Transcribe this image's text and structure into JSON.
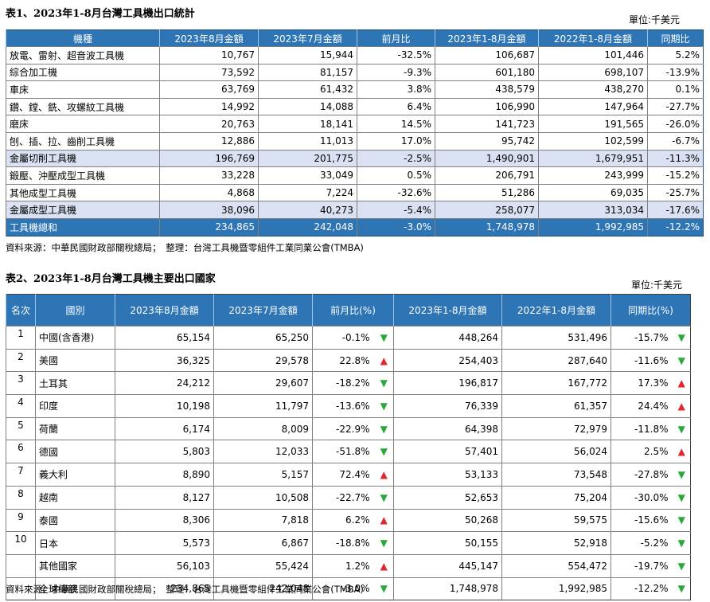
{
  "table1": {
    "title": "表1、2023年1-8月台灣工具機出口統計",
    "unit": "單位:千美元",
    "headers": [
      "機種",
      "2023年8月金額",
      "2023年7月金額",
      "前月比",
      "2023年1-8月金額",
      "2022年1-8月金額",
      "同期比"
    ],
    "rows": [
      [
        "放電、雷射、超音波工具機",
        "10,767",
        "15,944",
        "-32.5%",
        "106,687",
        "101,446",
        "5.2%"
      ],
      [
        "綜合加工機",
        "73,592",
        "81,157",
        "-9.3%",
        "601,180",
        "698,107",
        "-13.9%"
      ],
      [
        "車床",
        "63,769",
        "61,432",
        "3.8%",
        "438,579",
        "438,270",
        "0.1%"
      ],
      [
        "鑽、鏜、銑、攻螺紋工具機",
        "14,992",
        "14,088",
        "6.4%",
        "106,990",
        "147,964",
        "-27.7%"
      ],
      [
        "磨床",
        "20,763",
        "18,141",
        "14.5%",
        "141,723",
        "191,565",
        "-26.0%"
      ],
      [
        "刨、插、拉、齒削工具機",
        "12,886",
        "11,013",
        "17.0%",
        "95,742",
        "102,599",
        "-6.7%"
      ],
      [
        "金屬切削工具機",
        "196,769",
        "201,775",
        "-2.5%",
        "1,490,901",
        "1,679,951",
        "-11.3%"
      ],
      [
        "鍛壓、沖壓成型工具機",
        "33,228",
        "33,049",
        "0.5%",
        "206,791",
        "243,999",
        "-15.2%"
      ],
      [
        "其他成型工具機",
        "4,868",
        "7,224",
        "-32.6%",
        "51,286",
        "69,035",
        "-25.7%"
      ],
      [
        "金屬成型工具機",
        "38,096",
        "40,273",
        "-5.4%",
        "258,077",
        "313,034",
        "-17.6%"
      ],
      [
        "工具機總和",
        "234,865",
        "242,048",
        "-3.0%",
        "1,748,978",
        "1,992,985",
        "-12.2%"
      ]
    ],
    "source": "資料來源：中華民國財政部關稅總局；　整理：台灣工具機暨零組件工業同業公會(TMBA)"
  },
  "table2": {
    "title": "表2、2023年1-8月台灣工具機主要出口國家",
    "unit": "單位:千美元",
    "headers": [
      "名次",
      "國別",
      "2023年8月金額",
      "2023年7月金額",
      "前月比(%)",
      "2023年1-8月金額",
      "2022年1-8月金額",
      "同期比(%)"
    ],
    "rows": [
      {
        "rank": "1",
        "country": "中國(含香港)",
        "aug": "65,154",
        "jul": "65,250",
        "mom": "-0.1%",
        "mom_dir": "down",
        "ytd23": "448,264",
        "ytd22": "531,496",
        "yoy": "-15.7%",
        "yoy_dir": "down"
      },
      {
        "rank": "2",
        "country": "美國",
        "aug": "36,325",
        "jul": "29,578",
        "mom": "22.8%",
        "mom_dir": "up",
        "ytd23": "254,403",
        "ytd22": "287,640",
        "yoy": "-11.6%",
        "yoy_dir": "down"
      },
      {
        "rank": "3",
        "country": "土耳其",
        "aug": "24,212",
        "jul": "29,607",
        "mom": "-18.2%",
        "mom_dir": "down",
        "ytd23": "196,817",
        "ytd22": "167,772",
        "yoy": "17.3%",
        "yoy_dir": "up"
      },
      {
        "rank": "4",
        "country": "印度",
        "aug": "10,198",
        "jul": "11,797",
        "mom": "-13.6%",
        "mom_dir": "down",
        "ytd23": "76,339",
        "ytd22": "61,357",
        "yoy": "24.4%",
        "yoy_dir": "up"
      },
      {
        "rank": "5",
        "country": "荷蘭",
        "aug": "6,174",
        "jul": "8,009",
        "mom": "-22.9%",
        "mom_dir": "down",
        "ytd23": "64,398",
        "ytd22": "72,979",
        "yoy": "-11.8%",
        "yoy_dir": "down"
      },
      {
        "rank": "6",
        "country": "德國",
        "aug": "5,803",
        "jul": "12,033",
        "mom": "-51.8%",
        "mom_dir": "down",
        "ytd23": "57,401",
        "ytd22": "56,024",
        "yoy": "2.5%",
        "yoy_dir": "up"
      },
      {
        "rank": "7",
        "country": "義大利",
        "aug": "8,890",
        "jul": "5,157",
        "mom": "72.4%",
        "mom_dir": "up",
        "ytd23": "53,133",
        "ytd22": "73,548",
        "yoy": "-27.8%",
        "yoy_dir": "down"
      },
      {
        "rank": "8",
        "country": "越南",
        "aug": "8,127",
        "jul": "10,508",
        "mom": "-22.7%",
        "mom_dir": "down",
        "ytd23": "52,653",
        "ytd22": "75,204",
        "yoy": "-30.0%",
        "yoy_dir": "down"
      },
      {
        "rank": "9",
        "country": "泰國",
        "aug": "8,306",
        "jul": "7,818",
        "mom": "6.2%",
        "mom_dir": "up",
        "ytd23": "50,268",
        "ytd22": "59,575",
        "yoy": "-15.6%",
        "yoy_dir": "down"
      },
      {
        "rank": "10",
        "country": "日本",
        "aug": "5,573",
        "jul": "6,867",
        "mom": "-18.8%",
        "mom_dir": "down",
        "ytd23": "50,155",
        "ytd22": "52,918",
        "yoy": "-5.2%",
        "yoy_dir": "down"
      },
      {
        "rank": "",
        "country": "其他國家",
        "aug": "56,103",
        "jul": "55,424",
        "mom": "1.2%",
        "mom_dir": "up",
        "ytd23": "445,147",
        "ytd22": "554,472",
        "yoy": "-19.7%",
        "yoy_dir": "down"
      },
      {
        "rank": "",
        "country": "全球總額",
        "aug": "234,865",
        "jul": "242,048",
        "mom": "-3.0%",
        "mom_dir": "down",
        "ytd23": "1,748,978",
        "ytd22": "1,992,985",
        "yoy": "-12.2%",
        "yoy_dir": "down"
      }
    ],
    "source": "資料來源：中華民國財政部關稅總局；　整理：台灣工具機暨零組件工業同業公會(TMBA)"
  },
  "colors": {
    "header_bg": "#2e75b6",
    "subtotal_bg": "#d9e1f2",
    "up_arrow": "#e0262e",
    "down_arrow": "#2aa83a"
  }
}
